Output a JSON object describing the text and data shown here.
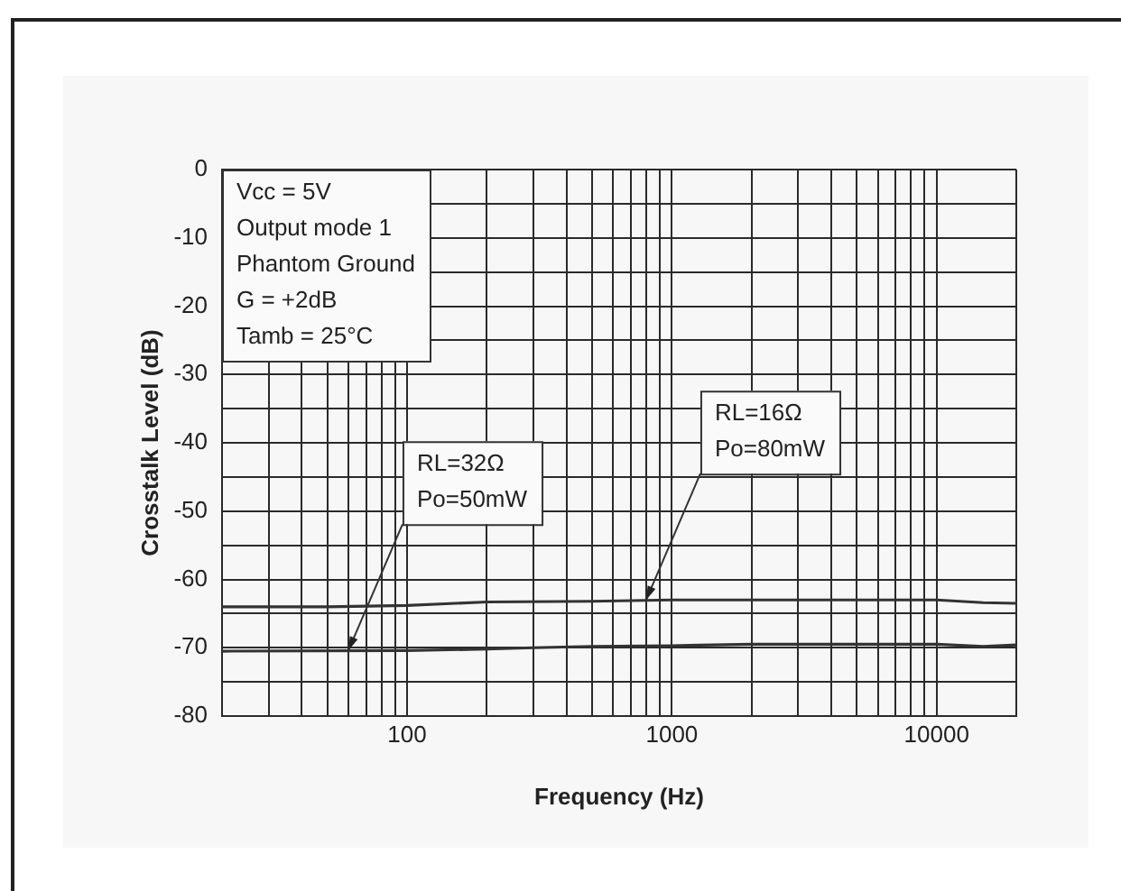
{
  "chart_data": {
    "type": "line",
    "xlabel": "Frequency (Hz)",
    "ylabel": "Crosstalk Level (dB)",
    "log": "x",
    "grid": true,
    "legend": false,
    "marker": "none",
    "line_style": "solid",
    "xlim": [
      20,
      20000
    ],
    "xticks": [
      {
        "value": 20,
        "label": null
      },
      {
        "value": 30,
        "label": null
      },
      {
        "value": 40,
        "label": null
      },
      {
        "value": 50,
        "label": null
      },
      {
        "value": 60,
        "label": null
      },
      {
        "value": 70,
        "label": null
      },
      {
        "value": 80,
        "label": null
      },
      {
        "value": 90,
        "label": null
      },
      100,
      {
        "value": 200,
        "label": null
      },
      {
        "value": 300,
        "label": null
      },
      {
        "value": 400,
        "label": null
      },
      {
        "value": 500,
        "label": null
      },
      {
        "value": 600,
        "label": null
      },
      {
        "value": 700,
        "label": null
      },
      {
        "value": 800,
        "label": null
      },
      {
        "value": 900,
        "label": null
      },
      1000,
      {
        "value": 2000,
        "label": null
      },
      {
        "value": 3000,
        "label": null
      },
      {
        "value": 4000,
        "label": null
      },
      {
        "value": 5000,
        "label": null
      },
      {
        "value": 6000,
        "label": null
      },
      {
        "value": 7000,
        "label": null
      },
      {
        "value": 8000,
        "label": null
      },
      {
        "value": 9000,
        "label": null
      },
      10000,
      {
        "value": 20000,
        "label": null
      }
    ],
    "ylim": [
      -80,
      0
    ],
    "yticks": [
      -80,
      {
        "value": -75,
        "label": null
      },
      -70,
      {
        "value": -65,
        "label": null
      },
      -60,
      {
        "value": -55,
        "label": null
      },
      -50,
      {
        "value": -45,
        "label": null
      },
      -40,
      {
        "value": -35,
        "label": null
      },
      -30,
      {
        "value": -25,
        "label": null
      },
      -20,
      {
        "value": -15,
        "label": null
      },
      -10,
      {
        "value": -5,
        "label": null
      },
      0
    ],
    "series": [
      {
        "color": "#333333",
        "x": [
          20,
          50,
          100,
          200,
          500,
          1000,
          2000,
          5000,
          10000,
          15000,
          20000
        ],
        "values": [
          -64,
          -64,
          -63.8,
          -63.3,
          -63.2,
          -63,
          -63,
          -63,
          -63,
          -63.4,
          -63.5
        ]
      },
      {
        "color": "#333333",
        "x": [
          20,
          100,
          200,
          300,
          500,
          1000,
          2000,
          5000,
          10000,
          15000,
          20000
        ],
        "values": [
          -70.5,
          -70.4,
          -70.2,
          -70,
          -69.8,
          -69.7,
          -69.5,
          -69.5,
          -69.5,
          -69.8,
          -69.6
        ]
      }
    ],
    "annotations": [
      "Vcc = 5V\nOutput mode 1\nPhantom Ground\nG = +2dB\nTamb = 25°C",
      {
        "text": "RL=32Ω\nPo=50mW",
        "x": 60,
        "y": -70.4
      },
      {
        "text": "RL=16Ω\nPo=80mW",
        "x": 800,
        "y": -63
      }
    ]
  }
}
